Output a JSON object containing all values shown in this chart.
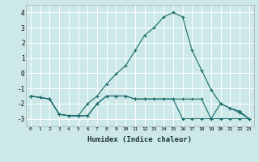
{
  "xlabel": "Humidex (Indice chaleur)",
  "bg_color": "#cce8e8",
  "grid_color": "#ffffff",
  "line_color": "#1a6b6b",
  "line1_x": [
    0,
    1,
    2,
    3,
    4,
    5,
    6,
    7,
    8,
    9,
    10,
    11,
    12,
    13,
    14,
    15,
    16,
    17,
    18,
    19,
    20,
    21,
    22,
    23
  ],
  "line1_y": [
    -1.5,
    -1.6,
    -1.7,
    -2.7,
    -2.8,
    -2.8,
    -2.8,
    -2.0,
    -1.5,
    -1.5,
    -1.5,
    -1.7,
    -1.7,
    -1.7,
    -1.7,
    -1.7,
    -1.7,
    -1.7,
    -1.7,
    -3.0,
    -3.0,
    -3.0,
    -3.0,
    -3.0
  ],
  "line2_x": [
    0,
    1,
    2,
    3,
    4,
    5,
    6,
    7,
    8,
    9,
    10,
    11,
    12,
    13,
    14,
    15,
    16,
    17,
    18,
    19,
    20,
    21,
    22,
    23
  ],
  "line2_y": [
    -1.5,
    -1.6,
    -1.7,
    -2.7,
    -2.8,
    -2.8,
    -2.8,
    -2.0,
    -1.5,
    -1.5,
    -1.5,
    -1.7,
    -1.7,
    -1.7,
    -1.7,
    -1.7,
    -3.0,
    -3.0,
    -3.0,
    -3.0,
    -2.0,
    -2.3,
    -2.5,
    -3.0
  ],
  "line3_x": [
    0,
    1,
    2,
    3,
    4,
    5,
    6,
    7,
    8,
    9,
    10,
    11,
    12,
    13,
    14,
    15,
    16,
    17,
    18,
    19,
    20,
    21,
    22,
    23
  ],
  "line3_y": [
    -1.5,
    -1.6,
    -1.7,
    -2.7,
    -2.8,
    -2.8,
    -2.0,
    -1.5,
    -0.7,
    -0.05,
    0.5,
    1.5,
    2.5,
    3.0,
    3.7,
    4.0,
    3.7,
    1.5,
    0.2,
    -1.1,
    -2.0,
    -2.3,
    -2.6,
    -3.0
  ],
  "ylim": [
    -3.5,
    4.5
  ],
  "xlim": [
    -0.5,
    23.5
  ],
  "yticks": [
    -3,
    -2,
    -1,
    0,
    1,
    2,
    3,
    4
  ],
  "xticks": [
    0,
    1,
    2,
    3,
    4,
    5,
    6,
    7,
    8,
    9,
    10,
    11,
    12,
    13,
    14,
    15,
    16,
    17,
    18,
    19,
    20,
    21,
    22,
    23
  ],
  "figsize": [
    3.2,
    2.0
  ],
  "dpi": 100
}
